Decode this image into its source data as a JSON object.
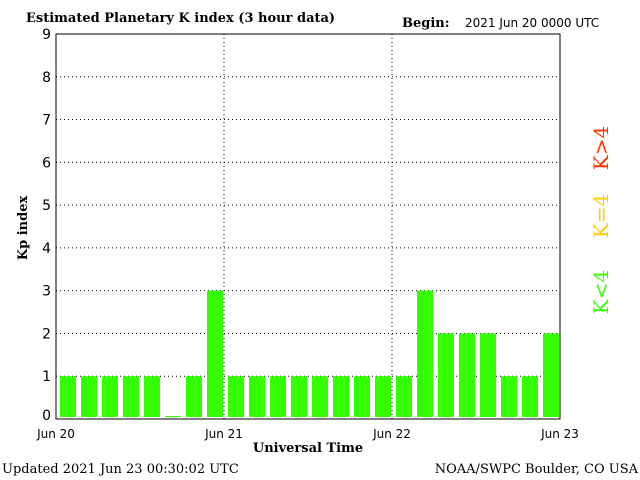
{
  "header": {
    "title": "Estimated Planetary K index (3 hour data)",
    "begin_label": "Begin:",
    "begin_value": "2021 Jun 20 0000 UTC"
  },
  "footer": {
    "updated": "Updated 2021 Jun 23 00:30:02 UTC",
    "credit": "NOAA/SWPC Boulder, CO USA"
  },
  "legend": {
    "k_less": {
      "label": "K<4",
      "color": "#33ff00"
    },
    "k_equal": {
      "label": "K=4",
      "color": "#ffcc00"
    },
    "k_greater": {
      "label": "K>4",
      "color": "#ff3300"
    }
  },
  "chart_data": {
    "type": "bar",
    "ylabel": "Kp index",
    "xlabel": "Universal Time",
    "ylim": [
      0,
      9
    ],
    "yticks": [
      "0",
      "1",
      "2",
      "3",
      "4",
      "5",
      "6",
      "7",
      "8",
      "9"
    ],
    "xticks": [
      "Jun 20",
      "Jun 21",
      "Jun 22",
      "Jun 23"
    ],
    "grid": "dotted",
    "bar_color": "#33ff00",
    "values": [
      1,
      1,
      1,
      1,
      1,
      0.07,
      1,
      3,
      1,
      1,
      1,
      1,
      1,
      1,
      1,
      1,
      1,
      3,
      2,
      2,
      2,
      1,
      1,
      2
    ]
  }
}
